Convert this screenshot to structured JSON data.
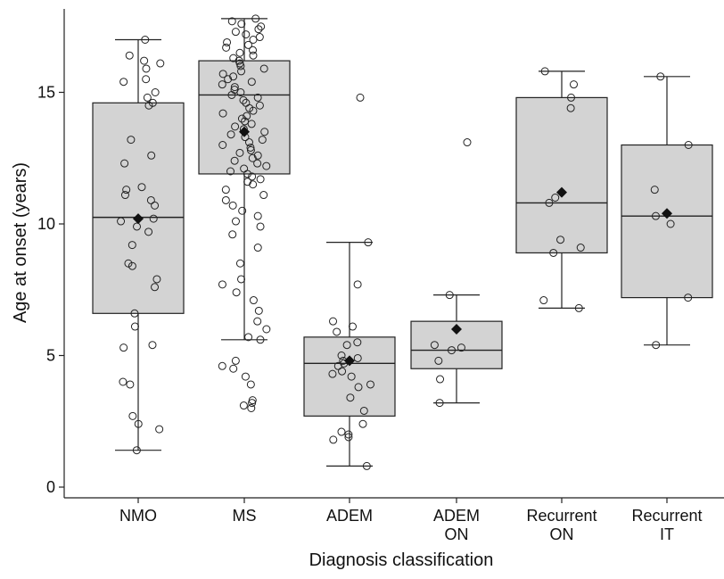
{
  "chart_data": {
    "type": "box",
    "xlabel": "Diagnosis classification",
    "ylabel": "Age at onset (years)",
    "ylim": [
      0,
      18
    ],
    "yticks": [
      0,
      5,
      10,
      15
    ],
    "grid": false,
    "colors": {
      "box_fill": "#d3d3d3",
      "box_stroke": "#222222",
      "point_stroke": "#222222",
      "mean_marker": "#111111"
    },
    "categories": [
      {
        "label_lines": [
          "NMO"
        ],
        "whisker_low": 1.4,
        "q1": 6.6,
        "median": 10.25,
        "q3": 14.6,
        "whisker_high": 17.0,
        "mean": 10.2,
        "outliers": [],
        "points": [
          17.0,
          16.4,
          16.2,
          16.1,
          15.9,
          15.5,
          15.4,
          15.0,
          14.8,
          14.6,
          14.5,
          13.2,
          12.6,
          12.3,
          11.4,
          11.3,
          11.1,
          10.9,
          10.7,
          10.2,
          10.1,
          9.9,
          9.7,
          9.2,
          8.5,
          8.4,
          7.9,
          7.6,
          6.6,
          6.1,
          5.4,
          5.3,
          4.0,
          3.9,
          2.7,
          2.4,
          2.2,
          1.4
        ]
      },
      {
        "label_lines": [
          "MS"
        ],
        "whisker_low": 5.6,
        "q1": 11.9,
        "median": 14.9,
        "q3": 16.2,
        "whisker_high": 17.8,
        "mean": 13.5,
        "outliers": [],
        "points": [
          17.8,
          17.7,
          17.6,
          17.5,
          17.4,
          17.3,
          17.2,
          17.1,
          17.0,
          16.9,
          16.8,
          16.7,
          16.6,
          16.5,
          16.4,
          16.3,
          16.2,
          16.1,
          16.0,
          15.9,
          15.8,
          15.7,
          15.6,
          15.5,
          15.4,
          15.3,
          15.2,
          15.1,
          15.0,
          14.9,
          14.8,
          14.7,
          14.6,
          14.5,
          14.4,
          14.3,
          14.2,
          14.1,
          14.0,
          13.9,
          13.8,
          13.7,
          13.6,
          13.5,
          13.4,
          13.3,
          13.2,
          13.1,
          13.0,
          12.9,
          12.8,
          12.7,
          12.6,
          12.5,
          12.4,
          12.3,
          12.2,
          12.1,
          12.0,
          11.9,
          11.8,
          11.7,
          11.6,
          11.5,
          11.3,
          11.1,
          10.9,
          10.7,
          10.5,
          10.3,
          10.1,
          9.9,
          9.6,
          9.1,
          8.5,
          7.9,
          7.7,
          7.4,
          7.1,
          6.7,
          6.3,
          6.0,
          5.7,
          5.6,
          4.8,
          4.6,
          4.5,
          4.2,
          3.9,
          3.3,
          3.2,
          3.1,
          3.0
        ]
      },
      {
        "label_lines": [
          "ADEM"
        ],
        "whisker_low": 0.8,
        "q1": 2.7,
        "median": 4.7,
        "q3": 5.7,
        "whisker_high": 9.3,
        "mean": 4.8,
        "outliers": [
          14.8
        ],
        "points": [
          9.3,
          7.7,
          6.3,
          6.1,
          5.9,
          5.5,
          5.4,
          5.0,
          4.9,
          4.8,
          4.7,
          4.6,
          4.4,
          4.3,
          4.2,
          3.9,
          3.8,
          3.4,
          2.9,
          2.4,
          2.1,
          2.0,
          1.9,
          1.8,
          0.8
        ]
      },
      {
        "label_lines": [
          "ADEM",
          "ON"
        ],
        "whisker_low": 3.2,
        "q1": 4.5,
        "median": 5.2,
        "q3": 6.3,
        "whisker_high": 7.3,
        "mean": 6.0,
        "outliers": [
          13.1
        ],
        "points": [
          7.3,
          5.4,
          5.3,
          5.2,
          4.8,
          4.1,
          3.2
        ]
      },
      {
        "label_lines": [
          "Recurrent",
          "ON"
        ],
        "whisker_low": 6.8,
        "q1": 8.9,
        "median": 10.8,
        "q3": 14.8,
        "whisker_high": 15.8,
        "mean": 11.2,
        "outliers": [],
        "points": [
          15.8,
          15.3,
          14.8,
          14.4,
          11.0,
          10.8,
          9.4,
          9.1,
          8.9,
          7.1,
          6.8
        ]
      },
      {
        "label_lines": [
          "Recurrent",
          "IT"
        ],
        "whisker_low": 5.4,
        "q1": 7.2,
        "median": 10.3,
        "q3": 13.0,
        "whisker_high": 15.6,
        "mean": 10.4,
        "outliers": [],
        "points": [
          15.6,
          13.0,
          11.3,
          10.3,
          10.0,
          7.2,
          5.4
        ]
      }
    ]
  }
}
